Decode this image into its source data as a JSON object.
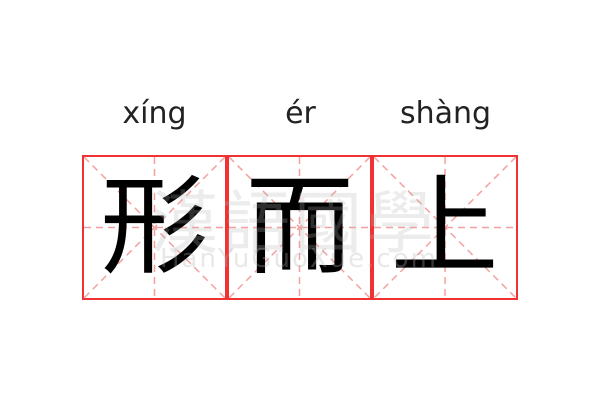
{
  "words": [
    {
      "pinyin": "xíng",
      "char": "形"
    },
    {
      "pinyin": "ér",
      "char": "而"
    },
    {
      "pinyin": "shàng",
      "char": "上"
    }
  ],
  "watermark": {
    "chinese": "漢語國學",
    "latin": "HanYuGuoXue.com"
  },
  "colors": {
    "border": "#f03232",
    "guide": "#f5a0a0",
    "text": "#000000"
  }
}
